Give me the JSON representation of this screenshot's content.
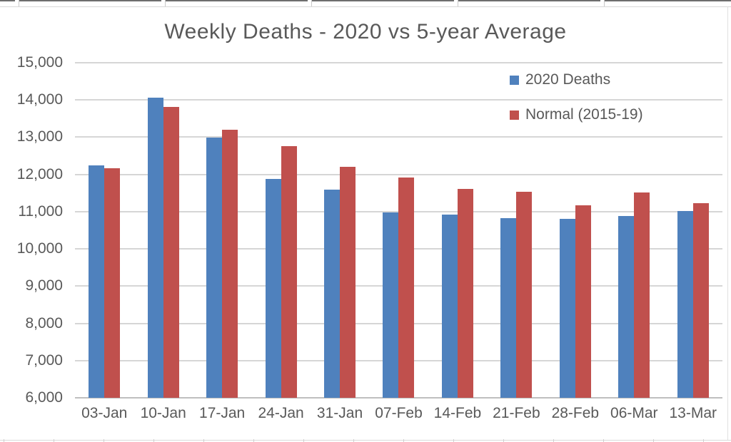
{
  "chart_data": {
    "type": "bar",
    "title": "Weekly Deaths - 2020 vs 5-year Average",
    "categories": [
      "03-Jan",
      "10-Jan",
      "17-Jan",
      "24-Jan",
      "31-Jan",
      "07-Feb",
      "14-Feb",
      "21-Feb",
      "28-Feb",
      "06-Mar",
      "13-Mar"
    ],
    "series": [
      {
        "name": "2020 Deaths",
        "color": "#4F81BD",
        "values": [
          12240,
          14060,
          12990,
          11880,
          11600,
          10980,
          10930,
          10820,
          10800,
          10880,
          11020
        ]
      },
      {
        "name": "Normal (2015-19)",
        "color": "#C0504D",
        "values": [
          12160,
          13820,
          13200,
          12760,
          12200,
          11910,
          11610,
          11530,
          11180,
          11510,
          11220
        ]
      }
    ],
    "ylim": [
      6000,
      15000
    ],
    "ytick_step": 1000,
    "ytick_labels": [
      "6,000",
      "7,000",
      "8,000",
      "9,000",
      "10,000",
      "11,000",
      "12,000",
      "13,000",
      "14,000",
      "15,000"
    ],
    "grid": true,
    "legend_position": "top-right-inside",
    "title_color": "#595959",
    "axis_label_color": "#595959",
    "gridline_color": "#d6d6d6"
  }
}
